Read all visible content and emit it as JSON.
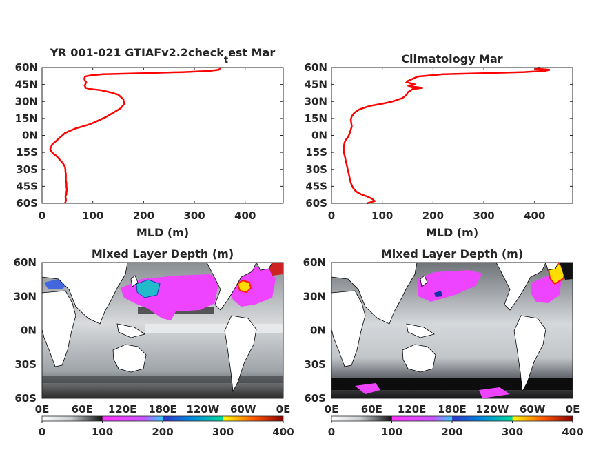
{
  "figure": {
    "colorbar_ticks": [
      "0",
      "100",
      "200",
      "300",
      "400"
    ],
    "colorbar_range": [
      0,
      400
    ],
    "colorbar_colors": [
      "#ffffff",
      "#9aa0a5",
      "#1a1a1a",
      "#ff33ff",
      "#ee66ff",
      "#3333cc",
      "#00dddd",
      "#00cc88",
      "#ffff00",
      "#ff7700",
      "#ff0000",
      "#880000"
    ],
    "map_longitude_ticks": [
      "0E",
      "60E",
      "120E",
      "180E",
      "120W",
      "60W",
      "0E"
    ],
    "map_latitude_ticks": [
      "60N",
      "30N",
      "0N",
      "30S",
      "60S"
    ],
    "land_color": "#ffffff"
  },
  "chart_data": [
    {
      "type": "line",
      "title_main": "YR 001-021 GTIAFv2.2check",
      "title_sub": "t",
      "title_end": "est Mar",
      "xlabel": "MLD (m)",
      "ylabel": "",
      "xlim": [
        0,
        475
      ],
      "ylim": [
        -60,
        60
      ],
      "xticks": [
        "0",
        "100",
        "200",
        "300",
        "400"
      ],
      "yticks": [
        "60N",
        "45N",
        "30N",
        "15N",
        "0N",
        "15S",
        "30S",
        "45S",
        "60S"
      ],
      "line_color": "#ff0000",
      "series": [
        {
          "x": [
            45,
            47,
            47,
            46,
            48,
            48,
            49,
            48,
            48,
            48,
            47,
            47,
            47,
            47,
            46,
            46,
            45,
            43,
            40,
            36,
            32,
            28,
            22,
            18,
            16,
            18,
            20,
            25,
            30,
            35,
            40,
            45,
            55,
            65,
            80,
            95,
            110,
            125,
            140,
            155,
            162,
            160,
            150,
            135,
            115,
            95,
            86,
            84,
            86,
            87,
            85,
            83,
            85,
            95,
            120,
            200,
            280,
            330,
            348,
            352
          ],
          "y": [
            -60,
            -58,
            -56,
            -54,
            -52,
            -50,
            -48,
            -46,
            -44,
            -42,
            -40,
            -38,
            -36,
            -34,
            -32,
            -30,
            -28,
            -26,
            -24,
            -22,
            -20,
            -18,
            -16,
            -14,
            -12,
            -10,
            -8,
            -6,
            -4,
            -2,
            0,
            2,
            4,
            6,
            8,
            10,
            13,
            16,
            20,
            24,
            28,
            32,
            36,
            38,
            40,
            41,
            42,
            44,
            46,
            47,
            48,
            50,
            52,
            53,
            54,
            55,
            56,
            57,
            58,
            60
          ]
        }
      ]
    },
    {
      "type": "line",
      "title": "Climatology Mar",
      "xlabel": "MLD (m)",
      "ylabel": "",
      "xlim": [
        0,
        475
      ],
      "ylim": [
        -60,
        60
      ],
      "xticks": [
        "0",
        "100",
        "200",
        "300",
        "400"
      ],
      "yticks": [
        "60N",
        "45N",
        "30N",
        "15N",
        "0N",
        "15S",
        "30S",
        "45S",
        "60S"
      ],
      "line_color": "#ff0000",
      "series": [
        {
          "x": [
            70,
            85,
            80,
            70,
            58,
            50,
            45,
            42,
            40,
            38,
            37,
            36,
            35,
            34,
            33,
            32,
            31,
            30,
            29,
            28,
            27,
            26,
            25,
            24,
            24,
            24,
            25,
            26,
            28,
            32,
            34,
            36,
            38,
            40,
            39,
            38,
            40,
            45,
            55,
            75,
            100,
            120,
            140,
            148,
            150,
            160,
            180,
            160,
            150,
            165,
            148,
            150,
            170,
            220,
            300,
            380,
            420,
            430,
            400,
            410
          ],
          "y": [
            -60,
            -58,
            -56,
            -54,
            -52,
            -50,
            -48,
            -46,
            -44,
            -42,
            -40,
            -38,
            -36,
            -34,
            -32,
            -30,
            -28,
            -26,
            -24,
            -22,
            -20,
            -18,
            -16,
            -14,
            -12,
            -10,
            -8,
            -6,
            -4,
            -2,
            0,
            2,
            5,
            8,
            11,
            14,
            17,
            20,
            23,
            26,
            28,
            30,
            33,
            36,
            38,
            41,
            42,
            43,
            44,
            45,
            47,
            48,
            52,
            54,
            55,
            56,
            57,
            58,
            59,
            60
          ]
        }
      ]
    },
    {
      "type": "heatmap",
      "title": "Mixed Layer Depth (m)",
      "xticks": [
        "0E",
        "60E",
        "120E",
        "180E",
        "120W",
        "60W",
        "0E"
      ],
      "yticks": [
        "60N",
        "30N",
        "0N",
        "30S",
        "60S"
      ],
      "value_range": [
        0,
        400
      ]
    },
    {
      "type": "heatmap",
      "title": "Mixed Layer Depth (m)",
      "xticks": [
        "0E",
        "60E",
        "120E",
        "180E",
        "120W",
        "60W",
        "0E"
      ],
      "yticks": [
        "60N",
        "30N",
        "0N",
        "30S",
        "60S"
      ],
      "value_range": [
        0,
        400
      ]
    }
  ]
}
